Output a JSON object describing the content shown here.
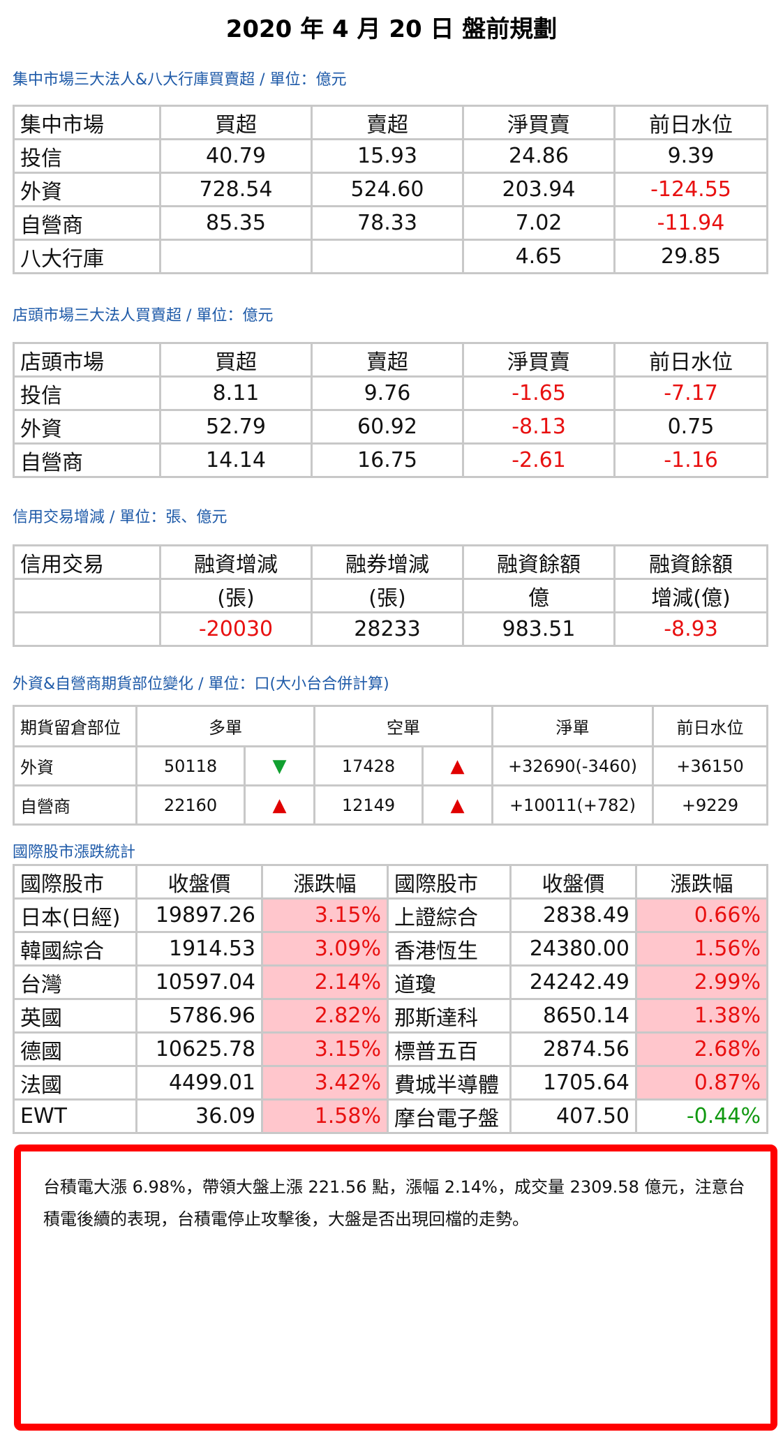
{
  "title": "2020 年 4 月 20 日  盤前規劃",
  "sections": {
    "s1": "集中市場三大法人&八大行庫買賣超 / 單位：億元",
    "s2": "店頭市場三大法人買賣超 / 單位：億元",
    "s3": "信用交易增減 / 單位：張、億元",
    "s4": "外資&自營商期貨部位變化 / 單位：口(大小台合併計算)",
    "s5": "國際股市漲跌統計"
  },
  "listed": {
    "headers": [
      "集中市場",
      "買超",
      "賣超",
      "淨買賣",
      "前日水位"
    ],
    "rows": [
      [
        "投信",
        "40.79",
        "15.93",
        "24.86",
        "9.39"
      ],
      [
        "外資",
        "728.54",
        "524.60",
        "203.94",
        "-124.55"
      ],
      [
        "自營商",
        "85.35",
        "78.33",
        "7.02",
        "-11.94"
      ],
      [
        "八大行庫",
        "",
        "",
        "4.65",
        "29.85"
      ]
    ]
  },
  "otc": {
    "headers": [
      "店頭市場",
      "買超",
      "賣超",
      "淨買賣",
      "前日水位"
    ],
    "rows": [
      [
        "投信",
        "8.11",
        "9.76",
        "-1.65",
        "-7.17"
      ],
      [
        "外資",
        "52.79",
        "60.92",
        "-8.13",
        "0.75"
      ],
      [
        "自營商",
        "14.14",
        "16.75",
        "-2.61",
        "-1.16"
      ]
    ]
  },
  "credit": {
    "header1": [
      "信用交易",
      "融資增減",
      "融券增減",
      "融資餘額",
      "融資餘額"
    ],
    "header2": [
      "",
      "(張)",
      "(張)",
      "億",
      "增減(億)"
    ],
    "row": [
      "",
      "-20030",
      "28233",
      "983.51",
      "-8.93"
    ]
  },
  "futures": {
    "headers": [
      "期貨留倉部位",
      "多單",
      "空單",
      "淨單",
      "前日水位"
    ],
    "rows": [
      {
        "name": "外資",
        "long": "50118",
        "long_dir": "down",
        "short": "17428",
        "short_dir": "up",
        "net": "+32690(-3460)",
        "prev": "+36150"
      },
      {
        "name": "自營商",
        "long": "22160",
        "long_dir": "up",
        "short": "12149",
        "short_dir": "up",
        "net": "+10011(+782)",
        "prev": "+9229"
      }
    ],
    "arrow_up": "▲",
    "arrow_down": "▼"
  },
  "intl": {
    "headers": [
      "國際股市",
      "收盤價",
      "漲跌幅",
      "國際股市",
      "收盤價",
      "漲跌幅"
    ],
    "rows": [
      [
        "日本(日經)",
        "19897.26",
        "3.15%",
        "上證綜合",
        "2838.49",
        "0.66%"
      ],
      [
        "韓國綜合",
        "1914.53",
        "3.09%",
        "香港恆生",
        "24380.00",
        "1.56%"
      ],
      [
        "台灣",
        "10597.04",
        "2.14%",
        "道瓊",
        "24242.49",
        "2.99%"
      ],
      [
        "英國",
        "5786.96",
        "2.82%",
        "那斯達科",
        "8650.14",
        "1.38%"
      ],
      [
        "德國",
        "10625.78",
        "3.15%",
        "標普五百",
        "2874.56",
        "2.68%"
      ],
      [
        "法國",
        "4499.01",
        "3.42%",
        "費城半導體",
        "1705.64",
        "0.87%"
      ],
      [
        "EWT",
        "36.09",
        "1.58%",
        "摩台電子盤",
        "407.50",
        "-0.44%"
      ]
    ]
  },
  "commentary": "台積電大漲 6.98%，帶領大盤上漲 221.56 點，漲幅 2.14%，成交量 2309.58 億元，注意台積電後續的表現，台積電停止攻擊後，大盤是否出現回檔的走勢。",
  "colors": {
    "up": "#e81010",
    "down": "#119911",
    "rise_bg": "#ffc6cc",
    "section": "#1e5aa8",
    "frame": "#ff0000"
  }
}
